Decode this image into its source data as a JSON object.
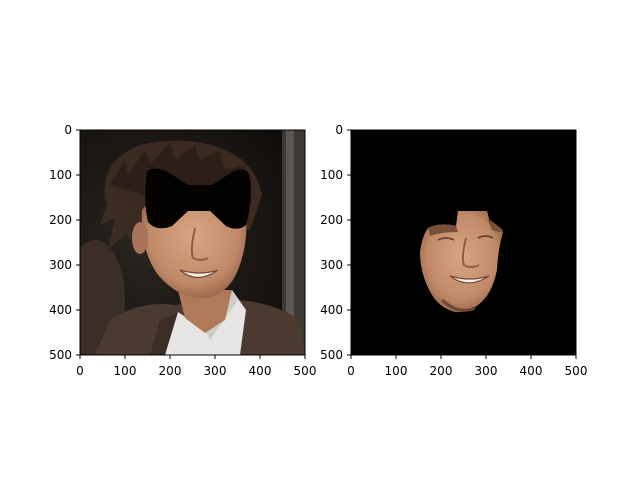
{
  "panels": [
    {
      "name": "original-image",
      "content": "portrait photo of a smiling man with tousled dark hair, a black bow-tie shaped mask covering the eye region",
      "xlim": [
        0,
        500
      ],
      "ylim": [
        500,
        0
      ],
      "xticks": [
        "0",
        "100",
        "200",
        "300",
        "400",
        "500"
      ],
      "yticks": [
        "0",
        "100",
        "200",
        "300",
        "400",
        "500"
      ]
    },
    {
      "name": "masked-face-image",
      "content": "same photo with everything except the lower face region blacked out",
      "xlim": [
        0,
        500
      ],
      "ylim": [
        500,
        0
      ],
      "xticks": [
        "0",
        "100",
        "200",
        "300",
        "400",
        "500"
      ],
      "yticks": [
        "0",
        "100",
        "200",
        "300",
        "400",
        "500"
      ]
    }
  ],
  "colors": {
    "background": "#000000",
    "mask": "#050202",
    "skin": "#c4906e",
    "skin_shadow": "#9a6a4e",
    "hair": "#3a2a20",
    "jacket": "#4a3a30",
    "shirt": "#e8e6e4"
  }
}
